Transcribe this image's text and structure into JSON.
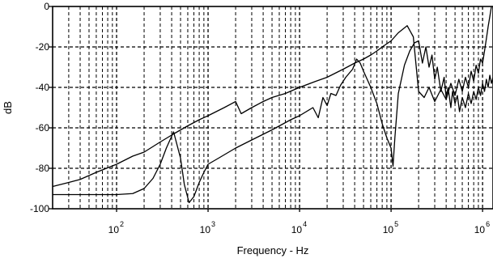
{
  "chart_data": {
    "type": "line",
    "title": "",
    "xlabel": "Frequency - Hz",
    "ylabel": "dB",
    "xscale": "log",
    "xlim": [
      20,
      1300000
    ],
    "ylim": [
      -100,
      0
    ],
    "grid": true,
    "grid_style": "dashed",
    "legend": "none",
    "line_color": "#000000",
    "x_ticks": [
      {
        "value": 100,
        "base": "10",
        "exp": "2"
      },
      {
        "value": 1000,
        "base": "10",
        "exp": "3"
      },
      {
        "value": 10000,
        "base": "10",
        "exp": "4"
      },
      {
        "value": 100000,
        "base": "10",
        "exp": "5"
      },
      {
        "value": 1000000,
        "base": "10",
        "exp": "6"
      }
    ],
    "y_ticks": [
      {
        "value": 0,
        "label": "0"
      },
      {
        "value": -20,
        "label": "-20"
      },
      {
        "value": -40,
        "label": "-40"
      },
      {
        "value": -60,
        "label": "-60"
      },
      {
        "value": -80,
        "label": "-80"
      },
      {
        "value": -100,
        "label": "-100"
      }
    ],
    "series": [
      {
        "points": [
          [
            20,
            -89
          ],
          [
            30,
            -87
          ],
          [
            40,
            -85.5
          ],
          [
            60,
            -82
          ],
          [
            100,
            -78
          ],
          [
            150,
            -74
          ],
          [
            200,
            -72
          ],
          [
            300,
            -67
          ],
          [
            420,
            -63
          ],
          [
            600,
            -59
          ],
          [
            800,
            -56
          ],
          [
            1000,
            -54
          ],
          [
            1500,
            -50
          ],
          [
            2000,
            -47
          ],
          [
            2300,
            -53
          ],
          [
            3000,
            -50
          ],
          [
            4000,
            -47
          ],
          [
            5000,
            -45
          ],
          [
            7000,
            -43
          ],
          [
            10000,
            -40
          ],
          [
            15000,
            -37
          ],
          [
            20000,
            -35
          ],
          [
            30000,
            -31
          ],
          [
            40000,
            -28
          ],
          [
            50000,
            -26
          ],
          [
            60000,
            -24
          ],
          [
            70000,
            -22
          ],
          [
            80000,
            -20
          ],
          [
            100000,
            -17
          ],
          [
            120000,
            -13
          ],
          [
            150000,
            -9.5
          ],
          [
            175000,
            -15
          ],
          [
            200000,
            -42
          ],
          [
            230000,
            -45
          ],
          [
            260000,
            -40
          ],
          [
            300000,
            -47
          ],
          [
            350000,
            -41
          ],
          [
            400000,
            -46
          ],
          [
            450000,
            -38
          ],
          [
            500000,
            -44
          ],
          [
            550000,
            -36
          ],
          [
            600000,
            -42
          ],
          [
            650000,
            -35
          ],
          [
            700000,
            -40
          ],
          [
            750000,
            -32
          ],
          [
            800000,
            -37
          ],
          [
            850000,
            -29
          ],
          [
            900000,
            -33
          ],
          [
            950000,
            -26
          ],
          [
            1000000,
            -28
          ],
          [
            1050000,
            -22
          ],
          [
            1100000,
            -16
          ],
          [
            1150000,
            -10
          ],
          [
            1200000,
            -5
          ],
          [
            1250000,
            0
          ]
        ]
      },
      {
        "points": [
          [
            20,
            -93
          ],
          [
            100,
            -93
          ],
          [
            150,
            -92.5
          ],
          [
            200,
            -90
          ],
          [
            250,
            -85
          ],
          [
            300,
            -78
          ],
          [
            350,
            -70
          ],
          [
            420,
            -62
          ],
          [
            500,
            -75
          ],
          [
            550,
            -88
          ],
          [
            620,
            -97
          ],
          [
            700,
            -94
          ],
          [
            800,
            -87
          ],
          [
            900,
            -82
          ],
          [
            1000,
            -78
          ],
          [
            1300,
            -75
          ],
          [
            2000,
            -70
          ],
          [
            3000,
            -66
          ],
          [
            5000,
            -61
          ],
          [
            8000,
            -56
          ],
          [
            10000,
            -54
          ],
          [
            14000,
            -50
          ],
          [
            16000,
            -55
          ],
          [
            18000,
            -45
          ],
          [
            20000,
            -49
          ],
          [
            22000,
            -43
          ],
          [
            25000,
            -44
          ],
          [
            28000,
            -39
          ],
          [
            32000,
            -35
          ],
          [
            38000,
            -31
          ],
          [
            42000,
            -26
          ],
          [
            46000,
            -28
          ],
          [
            50000,
            -32
          ],
          [
            60000,
            -40
          ],
          [
            70000,
            -48
          ],
          [
            80000,
            -58
          ],
          [
            90000,
            -65
          ],
          [
            100000,
            -70
          ],
          [
            105000,
            -79
          ],
          [
            110000,
            -65
          ],
          [
            120000,
            -43
          ],
          [
            140000,
            -29
          ],
          [
            160000,
            -22
          ],
          [
            180000,
            -18
          ],
          [
            200000,
            -17
          ],
          [
            220000,
            -28
          ],
          [
            240000,
            -20
          ],
          [
            260000,
            -30
          ],
          [
            280000,
            -24
          ],
          [
            300000,
            -36
          ],
          [
            320000,
            -30
          ],
          [
            350000,
            -42
          ],
          [
            380000,
            -35
          ],
          [
            400000,
            -45
          ],
          [
            420000,
            -40
          ],
          [
            450000,
            -50
          ],
          [
            470000,
            -42
          ],
          [
            500000,
            -48
          ],
          [
            530000,
            -44
          ],
          [
            560000,
            -52
          ],
          [
            600000,
            -45
          ],
          [
            650000,
            -50
          ],
          [
            700000,
            -43
          ],
          [
            750000,
            -48
          ],
          [
            800000,
            -42
          ],
          [
            850000,
            -46
          ],
          [
            900000,
            -40
          ],
          [
            950000,
            -44
          ],
          [
            1000000,
            -38
          ],
          [
            1050000,
            -42
          ],
          [
            1100000,
            -36
          ],
          [
            1150000,
            -40
          ],
          [
            1200000,
            -34
          ],
          [
            1250000,
            -38
          ],
          [
            1300000,
            -35
          ]
        ]
      }
    ]
  }
}
